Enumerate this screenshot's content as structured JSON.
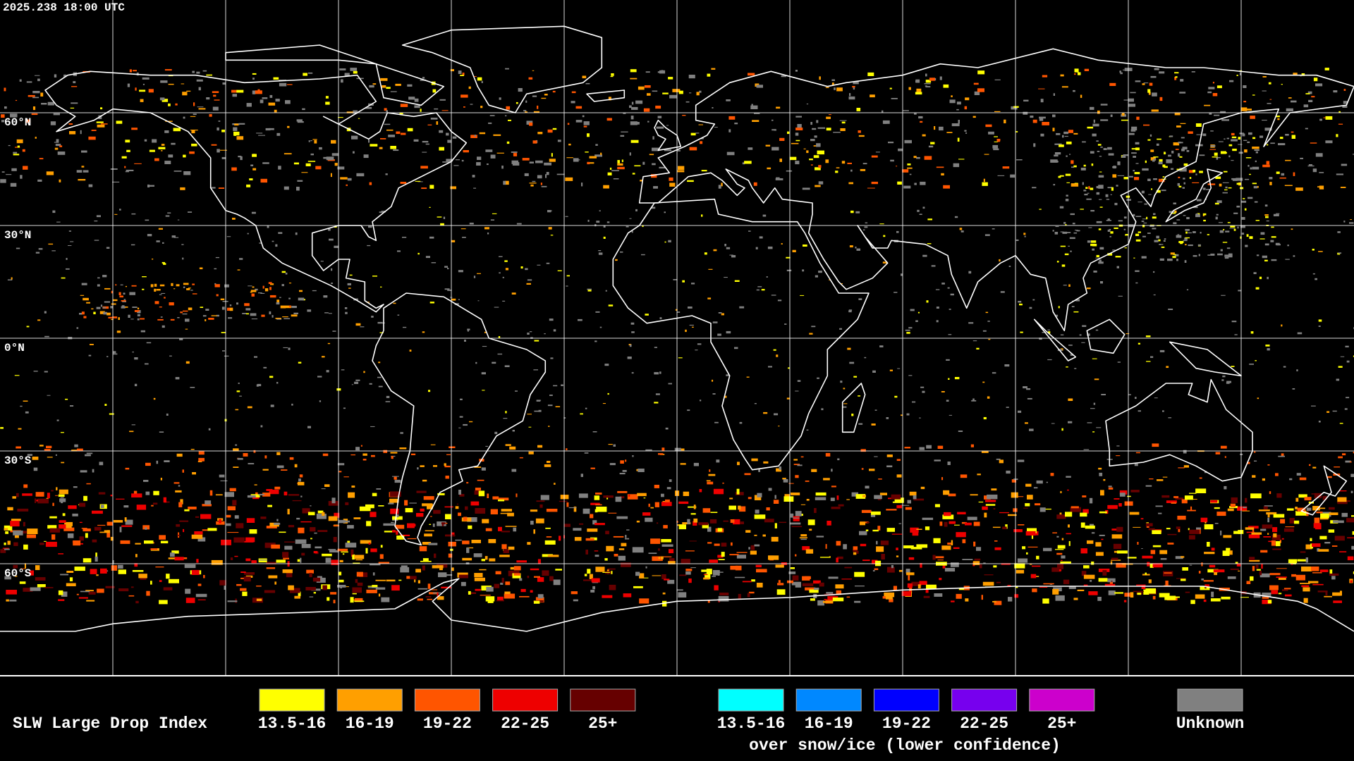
{
  "header": {
    "timestamp": "2025.238 18:00 UTC"
  },
  "map": {
    "latitude_labels": [
      "60°N",
      "30°N",
      "0°N",
      "30°S",
      "60°S"
    ]
  },
  "legend": {
    "title": "SLW Large Drop Index",
    "items": [
      {
        "label": "13.5-16",
        "color": "#ffff00"
      },
      {
        "label": "16-19",
        "color": "#ff9f00"
      },
      {
        "label": "19-22",
        "color": "#ff5500"
      },
      {
        "label": "22-25",
        "color": "#ee0000"
      },
      {
        "label": "25+",
        "color": "#660000"
      }
    ],
    "ice_items": [
      {
        "label": "13.5-16",
        "color": "#00ffff"
      },
      {
        "label": "16-19",
        "color": "#0088ff"
      },
      {
        "label": "19-22",
        "color": "#0000ff"
      },
      {
        "label": "22-25",
        "color": "#7700ee"
      },
      {
        "label": "25+",
        "color": "#cc00cc"
      }
    ],
    "ice_caption": "over snow/ice (lower confidence)",
    "unknown": {
      "label": "Unknown",
      "color": "#808080"
    }
  }
}
